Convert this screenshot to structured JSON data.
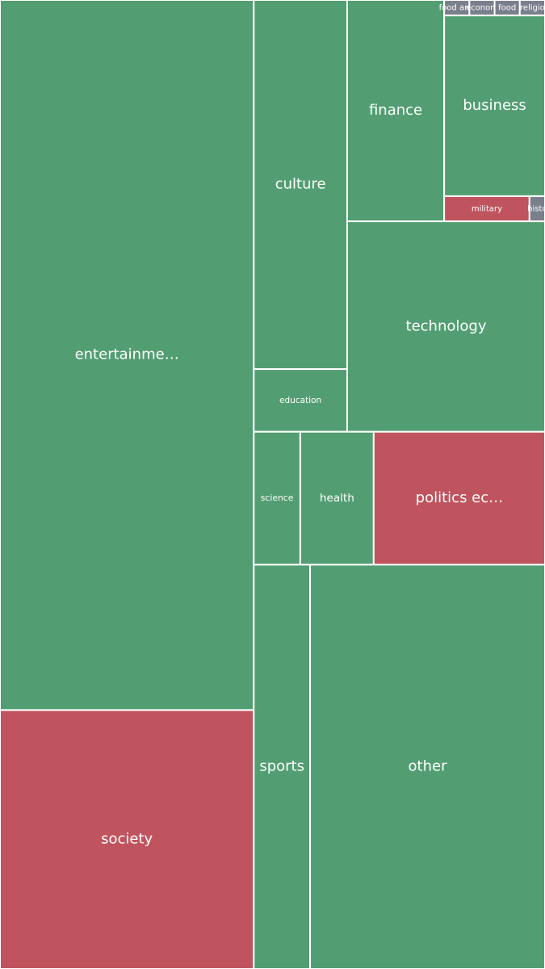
{
  "chart_data": {
    "type": "treemap",
    "items": [
      {
        "name": "entertainme…",
        "value": 277,
        "color": "#529e72"
      },
      {
        "name": "society",
        "value": 101,
        "color": "#c0545e"
      },
      {
        "name": "culture",
        "value": 53,
        "color": "#529e72"
      },
      {
        "name": "education",
        "value": 9,
        "color": "#529e72"
      },
      {
        "name": "finance",
        "value": 33,
        "color": "#529e72"
      },
      {
        "name": "food and",
        "value": 0.6,
        "color": "#7a7f8c"
      },
      {
        "name": "econom",
        "value": 0.6,
        "color": "#7a7f8c"
      },
      {
        "name": "food",
        "value": 0.6,
        "color": "#7a7f8c"
      },
      {
        "name": "religio",
        "value": 0.6,
        "color": "#7a7f8c"
      },
      {
        "name": "business",
        "value": 28,
        "color": "#529e72"
      },
      {
        "name": "military",
        "value": 3.3,
        "color": "#c0545e"
      },
      {
        "name": "histo",
        "value": 0.6,
        "color": "#7a7f8c"
      },
      {
        "name": "technology",
        "value": 64,
        "color": "#529e72"
      },
      {
        "name": "science",
        "value": 9.5,
        "color": "#529e72"
      },
      {
        "name": "health",
        "value": 15,
        "color": "#529e72"
      },
      {
        "name": "politics ec…",
        "value": 35,
        "color": "#c0545e"
      },
      {
        "name": "sports",
        "value": 35,
        "color": "#529e72"
      },
      {
        "name": "other",
        "value": 146,
        "color": "#529e72"
      }
    ]
  }
}
